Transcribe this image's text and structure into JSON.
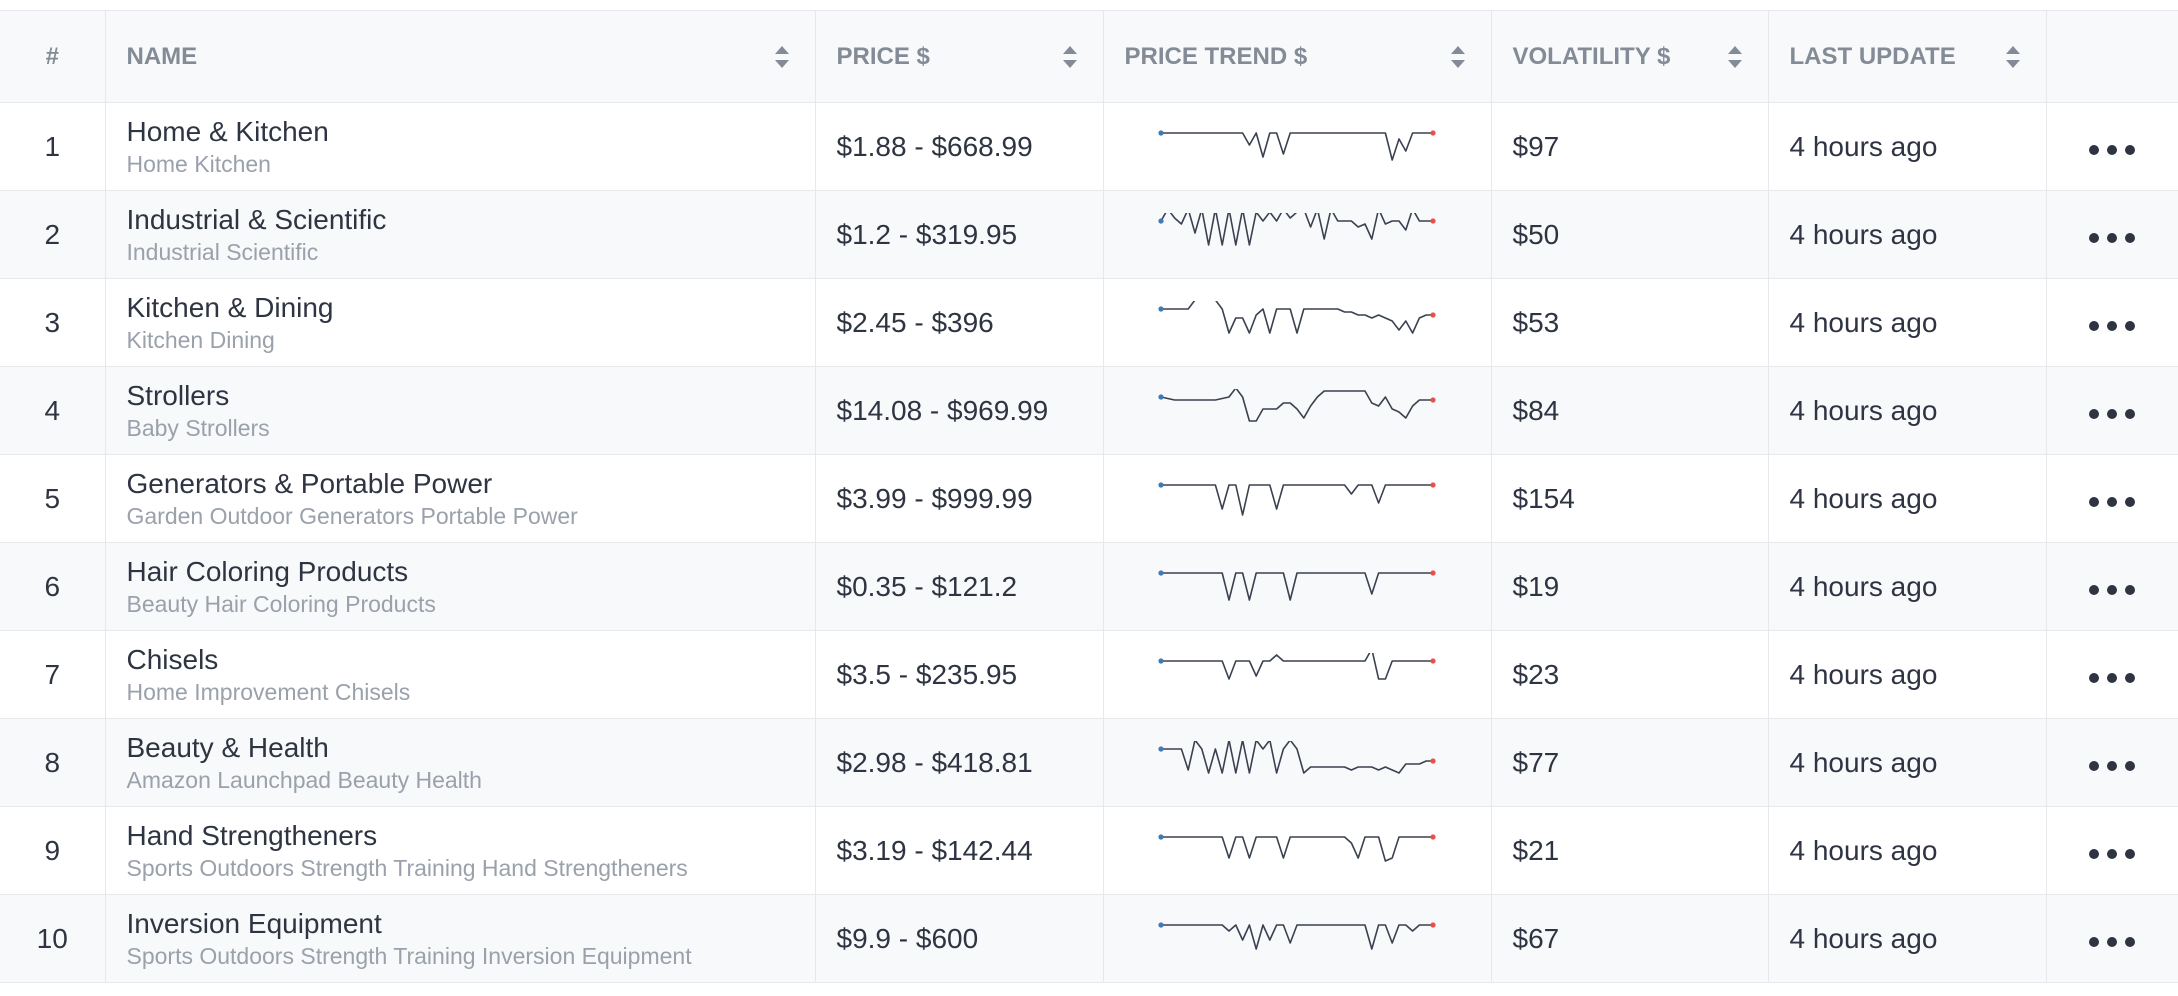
{
  "table": {
    "headers": {
      "num": "#",
      "name": "NAME",
      "price": "PRICE $",
      "trend": "PRICE TREND $",
      "volatility": "VOLATILITY $",
      "last_update": "LAST UPDATE"
    },
    "colors": {
      "trend_line": "#3a4150",
      "trend_start": "#3d7ab8",
      "trend_end": "#e8504a",
      "header_text": "#838b96",
      "subtext": "#9aa1ab"
    },
    "rows": [
      {
        "num": "1",
        "title": "Home & Kitchen",
        "subtitle": "Home Kitchen",
        "price": "$1.88 - $668.99",
        "volatility": "$97",
        "last_update": "4 hours ago",
        "trend": [
          0.0,
          0.0,
          0.0,
          0.0,
          0.0,
          0.0,
          0.0,
          0.0,
          0.0,
          0.0,
          0.0,
          0.0,
          0.0,
          0.4,
          0.0,
          0.8,
          0.0,
          0.0,
          0.7,
          0.0,
          0.0,
          0.0,
          0.0,
          0.0,
          0.0,
          0.0,
          0.0,
          0.0,
          0.0,
          0.0,
          0.0,
          0.0,
          0.0,
          0.0,
          0.9,
          0.2,
          0.6,
          0.0,
          0.0,
          0.0,
          0.0
        ]
      },
      {
        "num": "2",
        "title": "Industrial & Scientific",
        "subtitle": "Industrial Scientific",
        "price": "$1.2 - $319.95",
        "volatility": "$50",
        "last_update": "4 hours ago",
        "trend": [
          0.0,
          -0.4,
          -0.1,
          0.1,
          -0.4,
          0.4,
          -0.4,
          0.8,
          -0.4,
          0.8,
          -0.4,
          0.8,
          -0.4,
          0.8,
          -0.3,
          0.0,
          -0.3,
          0.0,
          -0.4,
          -0.1,
          -0.3,
          -0.4,
          0.2,
          -0.4,
          0.6,
          -0.4,
          0.0,
          0.0,
          0.0,
          0.2,
          0.1,
          0.6,
          -0.4,
          0.1,
          0.0,
          0.0,
          0.3,
          -0.4,
          0.0,
          0.0,
          0.0
        ]
      },
      {
        "num": "3",
        "title": "Kitchen & Dining",
        "subtitle": "Kitchen Dining",
        "price": "$2.45 - $396",
        "volatility": "$53",
        "last_update": "4 hours ago",
        "trend": [
          0.0,
          0.0,
          0.0,
          0.0,
          0.0,
          -0.3,
          -0.3,
          -0.3,
          -0.3,
          0.0,
          0.8,
          0.3,
          0.3,
          0.8,
          0.2,
          0.0,
          0.8,
          0.0,
          0.0,
          0.0,
          0.8,
          0.0,
          0.0,
          0.0,
          0.0,
          0.0,
          0.0,
          0.1,
          0.1,
          0.2,
          0.2,
          0.3,
          0.2,
          0.3,
          0.4,
          0.7,
          0.4,
          0.8,
          0.3,
          0.2,
          0.2
        ]
      },
      {
        "num": "4",
        "title": "Strollers",
        "subtitle": "Baby Strollers",
        "price": "$14.08 - $969.99",
        "volatility": "$84",
        "last_update": "4 hours ago",
        "trend": [
          0.0,
          0.05,
          0.1,
          0.1,
          0.1,
          0.1,
          0.1,
          0.1,
          0.1,
          0.05,
          0.0,
          -0.3,
          0.0,
          0.8,
          0.8,
          0.4,
          0.4,
          0.4,
          0.2,
          0.2,
          0.4,
          0.7,
          0.3,
          0.0,
          -0.2,
          -0.2,
          -0.2,
          -0.2,
          -0.2,
          -0.2,
          -0.2,
          0.2,
          0.3,
          0.0,
          0.4,
          0.5,
          0.7,
          0.3,
          0.1,
          0.1,
          0.1
        ]
      },
      {
        "num": "5",
        "title": "Generators & Portable Power",
        "subtitle": "Garden Outdoor Generators Portable Power",
        "price": "$3.99 - $999.99",
        "volatility": "$154",
        "last_update": "4 hours ago",
        "trend": [
          0.0,
          0.0,
          0.0,
          0.0,
          0.0,
          0.0,
          0.0,
          0.0,
          0.0,
          0.8,
          0.0,
          0.0,
          1.0,
          0.0,
          0.0,
          0.0,
          0.0,
          0.8,
          0.0,
          0.0,
          0.0,
          0.0,
          0.0,
          0.0,
          0.0,
          0.0,
          0.0,
          0.0,
          0.3,
          0.0,
          0.0,
          0.0,
          0.6,
          0.0,
          0.0,
          0.0,
          0.0,
          0.0,
          0.0,
          0.0,
          0.0
        ]
      },
      {
        "num": "6",
        "title": "Hair Coloring Products",
        "subtitle": "Beauty Hair Coloring Products",
        "price": "$0.35 - $121.2",
        "volatility": "$19",
        "last_update": "4 hours ago",
        "trend": [
          0.0,
          0.0,
          0.0,
          0.0,
          0.0,
          0.0,
          0.0,
          0.0,
          0.0,
          0.0,
          0.9,
          0.0,
          0.0,
          0.9,
          0.0,
          0.0,
          0.0,
          0.0,
          0.0,
          0.9,
          0.0,
          0.0,
          0.0,
          0.0,
          0.0,
          0.0,
          0.0,
          0.0,
          0.0,
          0.0,
          0.0,
          0.7,
          0.0,
          0.0,
          0.0,
          0.0,
          0.0,
          0.0,
          0.0,
          0.0,
          0.0
        ]
      },
      {
        "num": "7",
        "title": "Chisels",
        "subtitle": "Home Improvement Chisels",
        "price": "$3.5 - $235.95",
        "volatility": "$23",
        "last_update": "4 hours ago",
        "trend": [
          0.0,
          0.0,
          0.0,
          0.0,
          0.0,
          0.0,
          0.0,
          0.0,
          0.0,
          0.0,
          0.6,
          0.0,
          0.0,
          0.0,
          0.5,
          0.0,
          0.0,
          -0.2,
          0.0,
          0.0,
          0.0,
          0.0,
          0.0,
          0.0,
          0.0,
          0.0,
          0.0,
          0.0,
          0.0,
          0.0,
          0.0,
          -0.4,
          0.6,
          0.6,
          0.0,
          0.0,
          0.0,
          0.0,
          0.0,
          0.0,
          0.0
        ]
      },
      {
        "num": "8",
        "title": "Beauty & Health",
        "subtitle": "Amazon Launchpad Beauty Health",
        "price": "$2.98 - $418.81",
        "volatility": "$77",
        "last_update": "4 hours ago",
        "trend": [
          0.0,
          0.0,
          0.0,
          0.0,
          0.7,
          -0.3,
          0.0,
          0.8,
          0.0,
          0.8,
          -0.3,
          0.8,
          -0.3,
          0.8,
          -0.3,
          0.0,
          -0.3,
          0.8,
          0.0,
          -0.3,
          0.0,
          0.8,
          0.6,
          0.6,
          0.6,
          0.6,
          0.6,
          0.6,
          0.7,
          0.6,
          0.6,
          0.6,
          0.7,
          0.6,
          0.7,
          0.8,
          0.5,
          0.5,
          0.5,
          0.4,
          0.4
        ]
      },
      {
        "num": "9",
        "title": "Hand Strengtheners",
        "subtitle": "Sports Outdoors Strength Training Hand Strengtheners",
        "price": "$3.19 - $142.44",
        "volatility": "$21",
        "last_update": "4 hours ago",
        "trend": [
          0.0,
          0.0,
          0.0,
          0.0,
          0.0,
          0.0,
          0.0,
          0.0,
          0.0,
          0.0,
          0.7,
          0.0,
          0.0,
          0.7,
          0.0,
          0.0,
          0.0,
          0.0,
          0.7,
          0.0,
          0.0,
          0.0,
          0.0,
          0.0,
          0.0,
          0.0,
          0.0,
          0.0,
          0.2,
          0.7,
          0.0,
          0.0,
          0.0,
          0.8,
          0.7,
          0.0,
          0.0,
          0.0,
          0.0,
          0.0,
          0.0
        ]
      },
      {
        "num": "10",
        "title": "Inversion Equipment",
        "subtitle": "Sports Outdoors Strength Training Inversion Equipment",
        "price": "$9.9 - $600",
        "volatility": "$67",
        "last_update": "4 hours ago",
        "trend": [
          0.0,
          0.0,
          0.0,
          0.0,
          0.0,
          0.0,
          0.0,
          0.0,
          0.0,
          0.0,
          0.2,
          0.0,
          0.5,
          0.0,
          0.8,
          0.0,
          0.5,
          0.0,
          0.0,
          0.6,
          0.0,
          0.0,
          0.0,
          0.0,
          0.0,
          0.0,
          0.0,
          0.0,
          0.0,
          0.0,
          0.0,
          0.8,
          0.0,
          0.0,
          0.6,
          0.0,
          0.0,
          0.2,
          0.0,
          0.0,
          0.0
        ]
      }
    ]
  }
}
